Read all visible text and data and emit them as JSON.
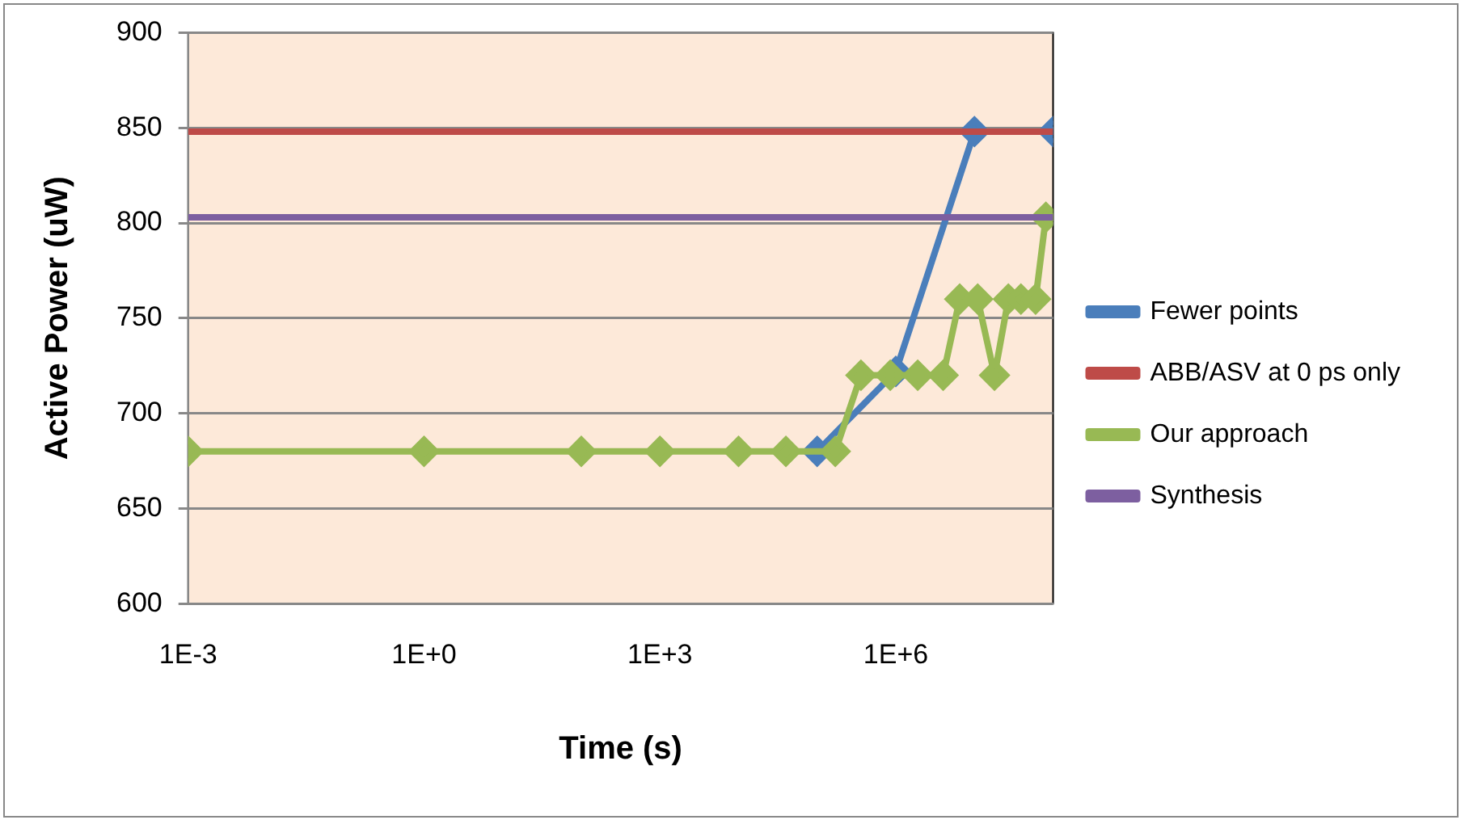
{
  "chart_data": {
    "type": "line",
    "xlabel": "Time (s)",
    "ylabel": "Active Power (uW)",
    "log": "x",
    "xlim": [
      0.001,
      100000000
    ],
    "xticks": [
      {
        "value": 0.001,
        "label": "1E-3"
      },
      {
        "value": 1,
        "label": "1E+0"
      },
      {
        "value": 1000,
        "label": "1E+3"
      },
      {
        "value": 1000000,
        "label": "1E+6"
      }
    ],
    "ylim": [
      600,
      900
    ],
    "yticks": [
      600,
      650,
      700,
      750,
      800,
      850,
      900
    ],
    "grid": "y",
    "legend": "right",
    "series": [
      {
        "name": "Fewer points",
        "color": "#4a7ebb",
        "marker": "diamond",
        "x": [
          100000,
          1000000,
          10000000,
          100000000
        ],
        "values": [
          680,
          722,
          848,
          848
        ]
      },
      {
        "name": "ABB/ASV at 0 ps only",
        "color": "#be4b48",
        "marker": "none",
        "x": [
          0.001,
          100000000
        ],
        "values": [
          848,
          848
        ]
      },
      {
        "name": "Our approach",
        "color": "#98b954",
        "marker": "diamond",
        "x": [
          0.001,
          1,
          100,
          1000,
          10000,
          40000,
          170000,
          360000,
          850000,
          1900000,
          4000000,
          6500000,
          11000000,
          18000000,
          27000000,
          39000000,
          60000000,
          81000000
        ],
        "values": [
          680,
          680,
          680,
          680,
          680,
          680,
          680,
          720,
          720,
          720,
          720,
          760,
          760,
          720,
          760,
          760,
          760,
          803
        ]
      },
      {
        "name": "Synthesis",
        "color": "#7d5fa0",
        "marker": "none",
        "x": [
          0.001,
          100000000
        ],
        "values": [
          803,
          803
        ]
      }
    ]
  }
}
